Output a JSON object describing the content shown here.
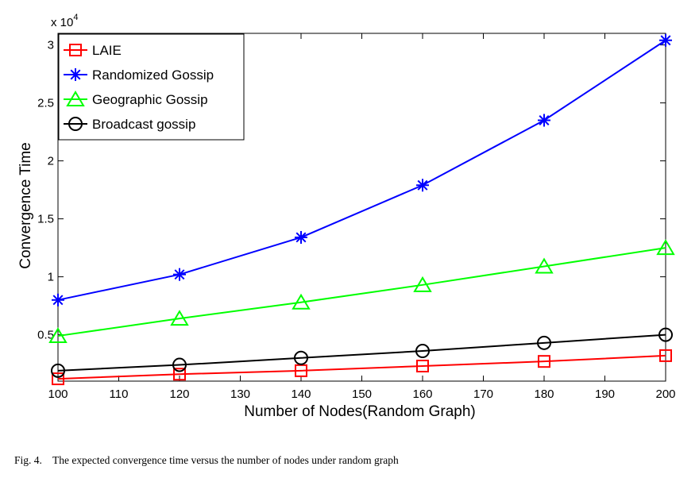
{
  "chart_data": {
    "type": "line",
    "title": "",
    "xlabel": "Number of Nodes(Random Graph)",
    "ylabel": "Convergence Time",
    "y_exponent_label": "x 10",
    "y_exponent_power": "4",
    "x": [
      100,
      120,
      140,
      160,
      180,
      200
    ],
    "xlim": [
      100,
      200
    ],
    "ylim": [
      1000,
      31000
    ],
    "x_ticks": [
      100,
      110,
      120,
      130,
      140,
      150,
      160,
      170,
      180,
      190,
      200
    ],
    "x_tick_labels": [
      "100",
      "110",
      "120",
      "130",
      "140",
      "150",
      "160",
      "170",
      "180",
      "190",
      "200"
    ],
    "y_ticks": [
      5000,
      10000,
      15000,
      20000,
      25000,
      30000
    ],
    "y_tick_labels": [
      "0.5",
      "1",
      "1.5",
      "2",
      "2.5",
      "3"
    ],
    "grid": false,
    "legend_position": "top-left",
    "series": [
      {
        "name": "LAIE",
        "color": "#ff0000",
        "marker": "square",
        "values": [
          1200,
          1600,
          1900,
          2300,
          2700,
          3200
        ]
      },
      {
        "name": "Randomized Gossip",
        "color": "#0000ff",
        "marker": "asterisk",
        "values": [
          8000,
          10200,
          13400,
          17900,
          23500,
          30400
        ]
      },
      {
        "name": "Geographic Gossip",
        "color": "#00ff00",
        "marker": "triangle",
        "values": [
          4900,
          6400,
          7800,
          9300,
          10900,
          12500
        ]
      },
      {
        "name": "Broadcast gossip",
        "color": "#000000",
        "marker": "circle",
        "values": [
          1900,
          2400,
          3000,
          3600,
          4300,
          5000
        ]
      }
    ]
  },
  "caption": {
    "label": "Fig. 4.",
    "text": "The expected convergence time versus the number of nodes under random graph"
  }
}
